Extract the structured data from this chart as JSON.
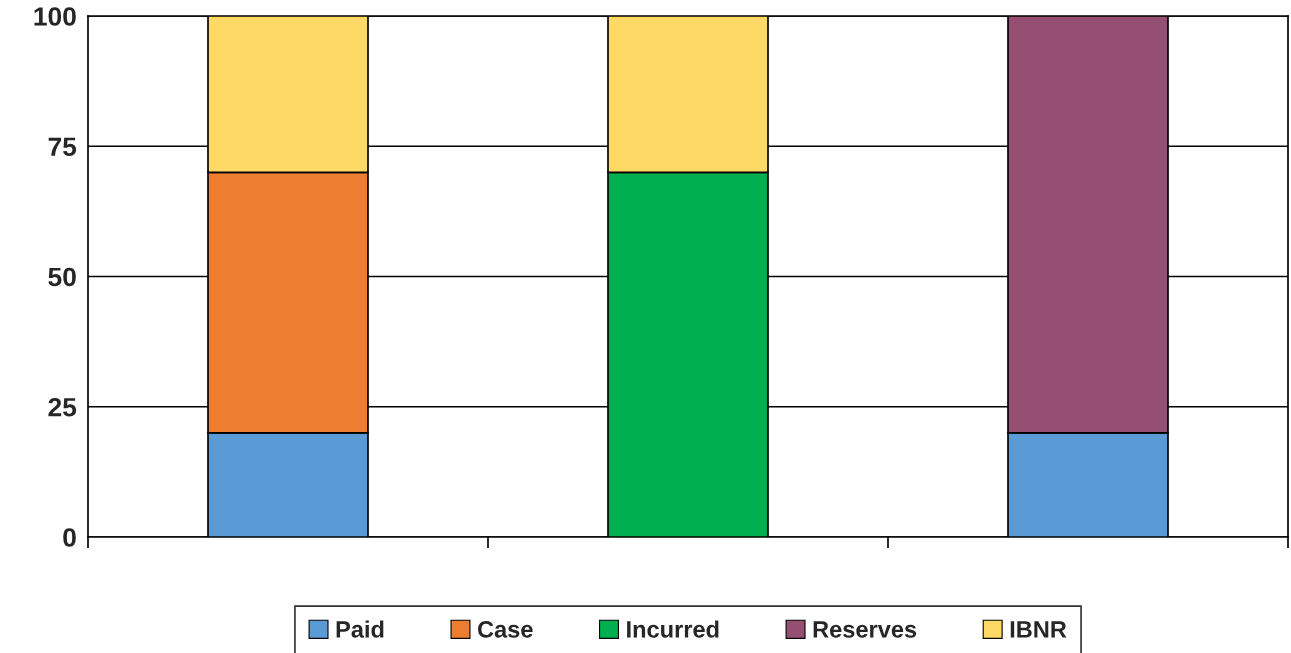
{
  "chart_data": {
    "type": "bar",
    "stacked": true,
    "categories": [
      null,
      null,
      null
    ],
    "series": [
      {
        "name": "Paid",
        "color": "#5b9bd5",
        "values": [
          20,
          null,
          20
        ]
      },
      {
        "name": "Case",
        "color": "#ed7d31",
        "values": [
          50,
          null,
          null
        ]
      },
      {
        "name": "Incurred",
        "color": "#00b050",
        "values": [
          null,
          70,
          null
        ]
      },
      {
        "name": "Reserves",
        "color": "#954f72",
        "values": [
          null,
          null,
          80
        ]
      },
      {
        "name": "IBNR",
        "color": "#ffd966",
        "values": [
          30,
          30,
          null
        ]
      }
    ],
    "ylim": [
      0,
      100
    ],
    "yticks": [
      0,
      25,
      50,
      75,
      100
    ],
    "grid": "y",
    "legend": "bottom"
  }
}
